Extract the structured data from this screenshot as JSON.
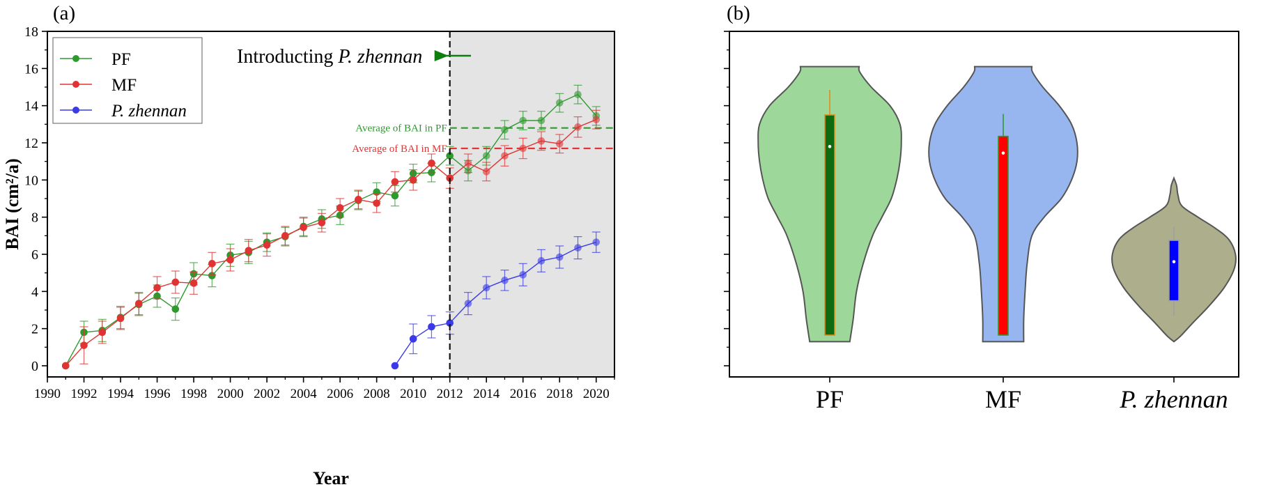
{
  "panels": {
    "a": {
      "tag": "(a)"
    },
    "b": {
      "tag": "(b)"
    }
  },
  "colors": {
    "pf": "#2e9a2e",
    "mf": "#e03434",
    "pz": "#3a3ae8",
    "shade": "#e4e4e4",
    "pf_violin": "#9dd89a",
    "mf_violin": "#97b6f0",
    "pz_violin": "#adae8b"
  },
  "annotations": {
    "introducing_prefix": "Introducting ",
    "introducing_species": "P. zhennan",
    "avg_pf": "Average of BAI in PF",
    "avg_mf": "Average of BAI in MF",
    "avg_pf_value": 12.8,
    "avg_mf_value": 11.7,
    "intro_year": 2012
  },
  "chart_data": [
    {
      "type": "line",
      "panel": "(a)",
      "xlabel": "Year",
      "ylabel": "BAI (cm²/a)",
      "xlim": [
        1990,
        2021
      ],
      "ylim": [
        -0.6,
        18
      ],
      "xticks": [
        1990,
        1992,
        1994,
        1996,
        1998,
        2000,
        2002,
        2004,
        2006,
        2008,
        2010,
        2012,
        2014,
        2016,
        2018,
        2020
      ],
      "yticks": [
        0,
        2,
        4,
        6,
        8,
        10,
        12,
        14,
        16,
        18
      ],
      "legend_position": "top-left",
      "shaded_region": [
        2012,
        2021
      ],
      "series": [
        {
          "name": "PF",
          "italic": false,
          "color_key": "pf",
          "x": [
            1991,
            1992,
            1993,
            1994,
            1995,
            1996,
            1997,
            1998,
            1999,
            2000,
            2001,
            2002,
            2003,
            2004,
            2005,
            2006,
            2007,
            2008,
            2009,
            2010,
            2011,
            2012,
            2013,
            2014,
            2015,
            2016,
            2017,
            2018,
            2019,
            2020
          ],
          "y": [
            0,
            1.8,
            1.9,
            2.6,
            3.3,
            3.75,
            3.05,
            4.95,
            4.85,
            5.95,
            6.1,
            6.65,
            6.95,
            7.5,
            7.9,
            8.1,
            8.9,
            9.35,
            9.15,
            10.35,
            10.4,
            11.3,
            10.5,
            11.3,
            12.7,
            13.2,
            13.2,
            14.15,
            14.6,
            13.45
          ],
          "err": [
            0,
            0.6,
            0.6,
            0.6,
            0.6,
            0.6,
            0.6,
            0.6,
            0.6,
            0.6,
            0.6,
            0.5,
            0.5,
            0.5,
            0.5,
            0.5,
            0.5,
            0.5,
            0.55,
            0.5,
            0.5,
            0.5,
            0.55,
            0.5,
            0.5,
            0.5,
            0.5,
            0.5,
            0.5,
            0.5
          ]
        },
        {
          "name": "MF",
          "italic": false,
          "color_key": "mf",
          "x": [
            1991,
            1992,
            1993,
            1994,
            1995,
            1996,
            1997,
            1998,
            1999,
            2000,
            2001,
            2002,
            2003,
            2004,
            2005,
            2006,
            2007,
            2008,
            2009,
            2010,
            2011,
            2012,
            2013,
            2014,
            2015,
            2016,
            2017,
            2018,
            2019,
            2020
          ],
          "y": [
            0,
            1.1,
            1.8,
            2.55,
            3.35,
            4.2,
            4.5,
            4.45,
            5.5,
            5.7,
            6.2,
            6.5,
            7.0,
            7.45,
            7.7,
            8.5,
            8.95,
            8.75,
            9.9,
            10.0,
            10.9,
            10.1,
            10.9,
            10.45,
            11.3,
            11.7,
            12.1,
            11.95,
            12.85,
            13.25
          ],
          "err": [
            0,
            1.0,
            0.6,
            0.6,
            0.6,
            0.6,
            0.6,
            0.6,
            0.6,
            0.6,
            0.6,
            0.6,
            0.5,
            0.5,
            0.5,
            0.5,
            0.5,
            0.5,
            0.55,
            0.55,
            0.5,
            0.55,
            0.5,
            0.5,
            0.55,
            0.55,
            0.5,
            0.5,
            0.55,
            0.5
          ]
        },
        {
          "name": "P. zhennan",
          "italic": true,
          "color_key": "pz",
          "x": [
            2009,
            2010,
            2011,
            2012,
            2013,
            2014,
            2015,
            2016,
            2017,
            2018,
            2019,
            2020
          ],
          "y": [
            0,
            1.45,
            2.1,
            2.3,
            3.35,
            4.2,
            4.6,
            4.9,
            5.65,
            5.85,
            6.35,
            6.65
          ],
          "err": [
            0,
            0.8,
            0.6,
            0.6,
            0.6,
            0.6,
            0.55,
            0.6,
            0.6,
            0.6,
            0.6,
            0.55
          ]
        }
      ]
    },
    {
      "type": "violin",
      "panel": "(b)",
      "categories": [
        "PF",
        "MF",
        "P. zhennan"
      ],
      "italic": [
        false,
        false,
        true
      ],
      "ylim": [
        -0.6,
        18
      ],
      "violins": [
        {
          "color_key": "pf_violin",
          "box_color": "#0f6b0f",
          "box_edge": "#e58a1a",
          "min": 1.3,
          "max": 16.1,
          "q1": 1.65,
          "q3": 13.5,
          "median": 11.8,
          "whisker_lo": 1.65,
          "whisker_hi": 14.85,
          "profile": [
            [
              1.3,
              0.3
            ],
            [
              2.5,
              0.35
            ],
            [
              4,
              0.4
            ],
            [
              5.5,
              0.5
            ],
            [
              7,
              0.64
            ],
            [
              8,
              0.78
            ],
            [
              9,
              0.92
            ],
            [
              10,
              1.0
            ],
            [
              11,
              1.05
            ],
            [
              12,
              1.07
            ],
            [
              13,
              1.05
            ],
            [
              14,
              0.9
            ],
            [
              15,
              0.62
            ],
            [
              15.8,
              0.45
            ],
            [
              16.1,
              0.44
            ]
          ]
        },
        {
          "color_key": "mf_violin",
          "box_color": "#ff0000",
          "box_edge": "#2e9a2e",
          "min": 1.3,
          "max": 16.1,
          "q1": 1.65,
          "q3": 12.35,
          "median": 11.45,
          "whisker_lo": 1.65,
          "whisker_hi": 13.55,
          "profile": [
            [
              1.3,
              0.3
            ],
            [
              2.5,
              0.3
            ],
            [
              4,
              0.32
            ],
            [
              5.5,
              0.35
            ],
            [
              7,
              0.42
            ],
            [
              8,
              0.6
            ],
            [
              9,
              0.85
            ],
            [
              10,
              1.0
            ],
            [
              11,
              1.08
            ],
            [
              12,
              1.08
            ],
            [
              13,
              1.0
            ],
            [
              14,
              0.82
            ],
            [
              15,
              0.58
            ],
            [
              15.8,
              0.43
            ],
            [
              16.1,
              0.42
            ]
          ]
        },
        {
          "color_key": "pz_violin",
          "box_color": "#0000ff",
          "box_edge": "#9e9e9e",
          "min": 1.3,
          "max": 10.1,
          "q1": 3.5,
          "q3": 6.75,
          "median": 5.6,
          "whisker_lo": 2.7,
          "whisker_hi": 7.45,
          "profile": [
            [
              1.3,
              0.0
            ],
            [
              1.6,
              0.1
            ],
            [
              2.3,
              0.28
            ],
            [
              3.2,
              0.52
            ],
            [
              4.2,
              0.75
            ],
            [
              5.2,
              0.9
            ],
            [
              6.0,
              0.92
            ],
            [
              6.8,
              0.82
            ],
            [
              7.4,
              0.62
            ],
            [
              8.0,
              0.36
            ],
            [
              8.6,
              0.12
            ],
            [
              9.2,
              0.06
            ],
            [
              9.7,
              0.04
            ],
            [
              10.1,
              0.0
            ]
          ]
        }
      ]
    }
  ]
}
